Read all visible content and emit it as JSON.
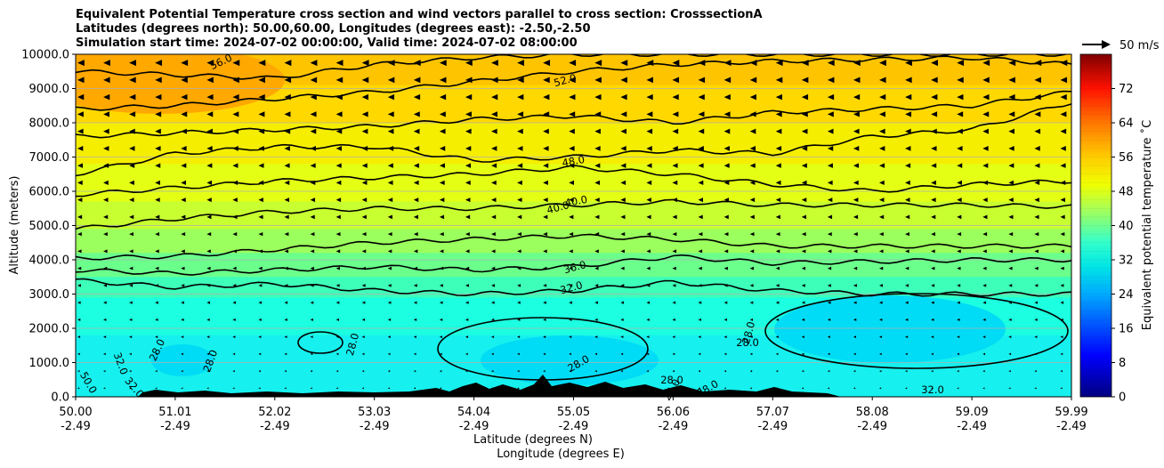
{
  "title_lines": [
    "Equivalent Potential Temperature cross section and wind vectors parallel to cross section: CrosssectionA",
    "Latitudes (degrees north): 50.00,60.00, Longitudes (degrees east): -2.50,-2.50",
    "Simulation start time: 2024-07-02 00:00:00, Valid time: 2024-07-02 08:00:00"
  ],
  "chart_data": {
    "type": "heatmap",
    "ylabel": "Altitude (meters)",
    "xlabel_lines": [
      "Latitude (degrees N)",
      "Longitude (degrees E)"
    ],
    "ylim": [
      0,
      10000
    ],
    "y_ticks": [
      "0.0",
      "1000.0",
      "2000.0",
      "3000.0",
      "4000.0",
      "5000.0",
      "6000.0",
      "7000.0",
      "8000.0",
      "9000.0",
      "10000.0"
    ],
    "x_ticks": [
      {
        "lat": "50.00",
        "lon": "-2.49"
      },
      {
        "lat": "51.01",
        "lon": "-2.49"
      },
      {
        "lat": "52.02",
        "lon": "-2.49"
      },
      {
        "lat": "53.03",
        "lon": "-2.49"
      },
      {
        "lat": "54.04",
        "lon": "-2.49"
      },
      {
        "lat": "55.05",
        "lon": "-2.49"
      },
      {
        "lat": "56.06",
        "lon": "-2.49"
      },
      {
        "lat": "57.07",
        "lon": "-2.49"
      },
      {
        "lat": "58.08",
        "lon": "-2.49"
      },
      {
        "lat": "59.09",
        "lon": "-2.49"
      },
      {
        "lat": "59.99",
        "lon": "-2.49"
      }
    ],
    "grid": "horizontal",
    "colorbar": {
      "label": "Equivalent potential temperature ˚C",
      "range": [
        0,
        80
      ],
      "ticks": [
        "0",
        "8",
        "16",
        "24",
        "32",
        "40",
        "48",
        "56",
        "64",
        "72"
      ]
    },
    "wind_key_label": "50 m/s",
    "contour_labels": [
      "56.0",
      "52.0",
      "48.0",
      "40.0",
      "40.0",
      "36.0",
      "32.0",
      "28.0",
      "28.0",
      "28.0",
      "28.0",
      "28.0",
      "28.0",
      "28.0",
      "28.0",
      "28.0",
      "32.0",
      "32.0",
      "32.0",
      "50.0"
    ],
    "contours_theta_e_C": [
      {
        "level": 56,
        "alt_m": [
          9500,
          9400,
          9300,
          9700,
          9900,
          10000,
          10000,
          10000,
          10000,
          10000,
          10000
        ]
      },
      {
        "level": 52,
        "alt_m": [
          8400,
          8500,
          8700,
          8900,
          9200,
          9500,
          9700,
          9800,
          9850,
          9900,
          9700
        ]
      },
      {
        "level": 52,
        "alt_m": [
          7600,
          7700,
          7800,
          7900,
          8100,
          8200,
          8000,
          8300,
          8400,
          8500,
          8900
        ]
      },
      {
        "level": 48,
        "alt_m": [
          6500,
          7100,
          7300,
          7300,
          6900,
          7000,
          7200,
          7100,
          7600,
          7800,
          8600
        ]
      },
      {
        "level": 48,
        "alt_m": [
          5900,
          6100,
          6300,
          6400,
          6500,
          6700,
          6500,
          6200,
          6000,
          6200,
          6300
        ]
      },
      {
        "level": 44,
        "alt_m": [
          4900,
          5200,
          5400,
          5500,
          5500,
          5600,
          5700,
          5600,
          5600,
          5600,
          5550
        ]
      },
      {
        "level": 40,
        "alt_m": [
          4050,
          4100,
          4300,
          4500,
          4600,
          4700,
          4600,
          4400,
          4400,
          4400,
          4400
        ]
      },
      {
        "level": 36,
        "alt_m": [
          3700,
          3600,
          3700,
          3800,
          3700,
          3800,
          4100,
          3900,
          3950,
          4000,
          4000
        ]
      },
      {
        "level": 32,
        "alt_m": [
          3400,
          3200,
          3300,
          3100,
          3000,
          3100,
          3350,
          3100,
          3000,
          3000,
          3000
        ]
      }
    ]
  }
}
